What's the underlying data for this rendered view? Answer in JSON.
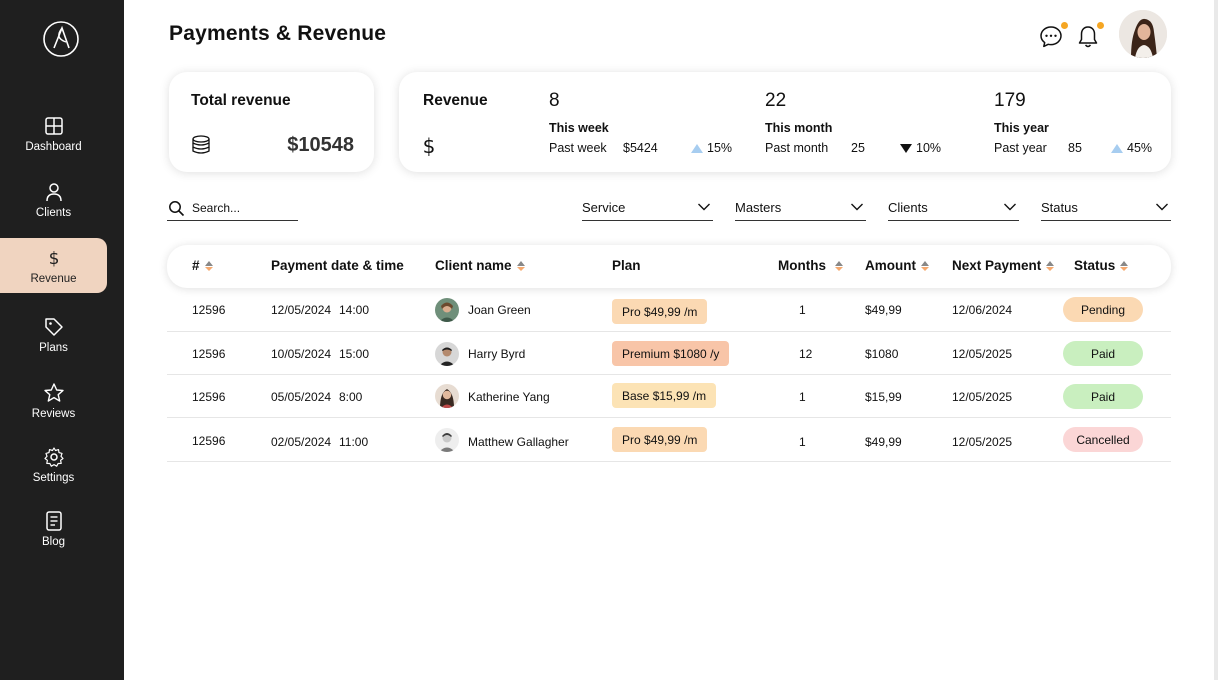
{
  "sidebar": {
    "items": [
      {
        "label": "Dashboard",
        "icon": "grid-icon"
      },
      {
        "label": "Clients",
        "icon": "user-icon"
      },
      {
        "label": "Revenue",
        "icon": "dollar-icon",
        "active": true
      },
      {
        "label": "Plans",
        "icon": "tag-icon"
      },
      {
        "label": "Reviews",
        "icon": "star-icon"
      },
      {
        "label": "Settings",
        "icon": "gear-icon"
      },
      {
        "label": "Blog",
        "icon": "document-icon"
      }
    ]
  },
  "header": {
    "title": "Payments & Revenue",
    "notification_dot_color": "#f5a623"
  },
  "total_revenue": {
    "title": "Total revenue",
    "amount": "$10548"
  },
  "revenue": {
    "title": "Revenue",
    "periods": [
      {
        "count": "8",
        "label": "This week",
        "past_label": "Past week",
        "past_value": "$5424",
        "trend": "up",
        "change": "15%"
      },
      {
        "count": "22",
        "label": "This month",
        "past_label": "Past month",
        "past_value": "25",
        "trend": "down",
        "change": "10%"
      },
      {
        "count": "179",
        "label": "This year",
        "past_label": "Past year",
        "past_value": "85",
        "trend": "up",
        "change": "45%"
      }
    ]
  },
  "filters": {
    "search_placeholder": "Search...",
    "dropdowns": [
      "Service",
      "Masters",
      "Clients",
      "Status"
    ]
  },
  "table": {
    "headers": [
      "#",
      "Payment date & time",
      "Client name",
      "Plan",
      "Months",
      "Amount",
      "Next Payment",
      "Status"
    ],
    "rows": [
      {
        "id": "12596",
        "date": "12/05/2024",
        "time": "14:00",
        "client": "Joan Green",
        "plan": "Pro",
        "plan_price": "$49,99",
        "plan_period": "/m",
        "months": "1",
        "amount": "$49,99",
        "next": "12/06/2024",
        "status": "Pending"
      },
      {
        "id": "12596",
        "date": "10/05/2024",
        "time": "15:00",
        "client": "Harry Byrd",
        "plan": "Premium",
        "plan_price": "$1080",
        "plan_period": "/y",
        "months": "12",
        "amount": "$1080",
        "next": "12/05/2025",
        "status": "Paid"
      },
      {
        "id": "12596",
        "date": "05/05/2024",
        "time": "8:00",
        "client": "Katherine Yang",
        "plan": "Base",
        "plan_price": "$15,99",
        "plan_period": "/m",
        "months": "1",
        "amount": "$15,99",
        "next": "12/05/2025",
        "status": "Paid"
      },
      {
        "id": "12596",
        "date": "02/05/2024",
        "time": "11:00",
        "client": "Matthew Gallagher",
        "plan": "Pro",
        "plan_price": "$49,99",
        "plan_period": "/m",
        "months": "1",
        "amount": "$49,99",
        "next": "12/05/2025",
        "status": "Cancelled"
      }
    ]
  },
  "colors": {
    "sidebar_bg": "#1f1f1f",
    "active_nav_bg": "#f0d4c0",
    "plan_pro": "#fbd9b3",
    "plan_premium": "#f8c5a8",
    "plan_base": "#fce3b5",
    "status_pending": "#fbd9b3",
    "status_paid": "#c9efbf",
    "status_cancelled": "#fbd6d6"
  }
}
